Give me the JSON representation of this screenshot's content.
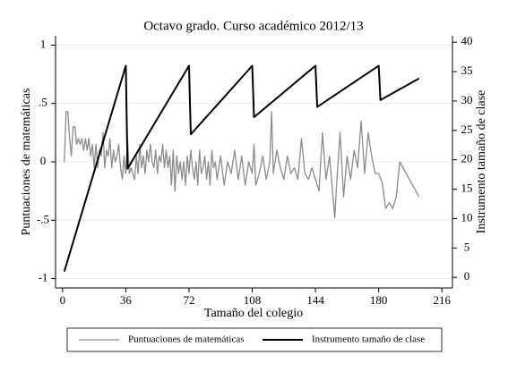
{
  "chart_data": {
    "type": "line",
    "title": "Octavo grado. Curso académico 2012/13",
    "x_label": "Tamaño del colegio",
    "y_label": "Puntuaciones de matemáticas",
    "y2_label": "Instrumento tamaño de clase",
    "xlim": [
      -4,
      222
    ],
    "xticks": [
      0,
      36,
      72,
      108,
      144,
      180,
      216
    ],
    "ylim": [
      -1.08,
      1.08
    ],
    "yticks": [
      -1,
      {
        "value": -0.5,
        "label": "-.5"
      },
      0,
      {
        "value": 0.5,
        "label": ".5"
      },
      1
    ],
    "y2lim": [
      -1.8,
      41.1
    ],
    "y2ticks": [
      0,
      5,
      10,
      15,
      20,
      25,
      30,
      35,
      40
    ],
    "grid": true,
    "legend": "bottom",
    "series": [
      {
        "name": "Puntuaciones de matemáticas",
        "color": "#8c8c8c",
        "x": [
          1,
          2,
          3,
          4,
          5,
          6,
          7,
          8,
          9,
          10,
          11,
          12,
          13,
          14,
          15,
          16,
          17,
          18,
          19,
          20,
          21,
          22,
          23,
          24,
          25,
          26,
          27,
          28,
          29,
          30,
          31,
          32,
          33,
          34,
          35,
          36,
          37,
          38,
          39,
          40,
          41,
          42,
          43,
          44,
          45,
          46,
          47,
          48,
          49,
          50,
          51,
          52,
          53,
          54,
          55,
          56,
          57,
          58,
          59,
          60,
          61,
          62,
          63,
          64,
          65,
          66,
          67,
          68,
          69,
          70,
          71,
          72,
          73,
          74,
          75,
          76,
          77,
          78,
          79,
          80,
          81,
          82,
          83,
          84,
          85,
          86,
          87,
          88,
          90,
          92,
          94,
          96,
          98,
          100,
          102,
          104,
          106,
          108,
          109,
          110,
          112,
          114,
          116,
          118,
          119,
          120,
          122,
          124,
          126,
          128,
          130,
          132,
          134,
          136,
          138,
          140,
          142,
          144,
          146,
          148,
          150,
          152,
          154,
          155,
          156,
          158,
          160,
          162,
          164,
          166,
          168,
          170,
          172,
          174,
          176,
          178,
          180,
          182,
          184,
          186,
          188,
          190,
          192,
          203
        ],
        "values": [
          0,
          0.43,
          0.43,
          0.2,
          0.05,
          0.3,
          0.3,
          0.15,
          0.2,
          0.15,
          0.2,
          0.1,
          0.2,
          0.1,
          0.2,
          0.05,
          0.15,
          -0.05,
          0.15,
          -0.05,
          0.1,
          0.05,
          0.25,
          -0.05,
          0.1,
          0.05,
          0.2,
          -0.05,
          0.1,
          0,
          0.05,
          0.15,
          -0.05,
          -0.15,
          0.05,
          -0.1,
          0.2,
          -0.1,
          -0.05,
          -0.1,
          -0.15,
          0.05,
          -0.1,
          0.15,
          -0.05,
          0.05,
          -0.1,
          0.1,
          0,
          0.15,
          0,
          -0.05,
          0.1,
          -0.1,
          0.05,
          0,
          0.15,
          -0.05,
          0.1,
          -0.05,
          0.05,
          -0.2,
          0.1,
          -0.25,
          0.05,
          -0.1,
          0,
          -0.15,
          0,
          -0.2,
          0.05,
          -0.1,
          0.1,
          -0.05,
          -0.15,
          0,
          -0.2,
          0.1,
          -0.1,
          -0.05,
          0.05,
          -0.15,
          0,
          -0.2,
          0.1,
          -0.05,
          0,
          -0.15,
          0.05,
          -0.2,
          0,
          -0.1,
          0.1,
          -0.15,
          0.05,
          -0.2,
          0,
          -0.1,
          0.15,
          -0.2,
          -0.1,
          0.05,
          -0.15,
          0,
          0.43,
          -0.1,
          0.1,
          -0.05,
          -0.15,
          0.05,
          -0.1,
          -0.05,
          -0.15,
          0.2,
          -0.1,
          -0.15,
          -0.05,
          -0.15,
          -0.25,
          0.25,
          -0.15,
          0.05,
          -0.3,
          -0.48,
          -0.2,
          0.25,
          -0.3,
          0.05,
          -0.15,
          0.1,
          -0.05,
          0.35,
          -0.1,
          0.25,
          0.05,
          -0.1,
          -0.1,
          -0.18,
          -0.4,
          -0.35,
          -0.4,
          -0.3,
          0,
          -0.3
        ]
      },
      {
        "name": "Instrumento tamaño de clase",
        "color": "#000000",
        "axis": "y2",
        "x": [
          1,
          36,
          37,
          72,
          73,
          108,
          109,
          144,
          145,
          180,
          181,
          203
        ],
        "values": [
          1,
          36,
          18.5,
          36,
          24.33,
          36,
          27.25,
          36,
          29,
          36,
          30.17,
          33.83
        ]
      }
    ]
  }
}
